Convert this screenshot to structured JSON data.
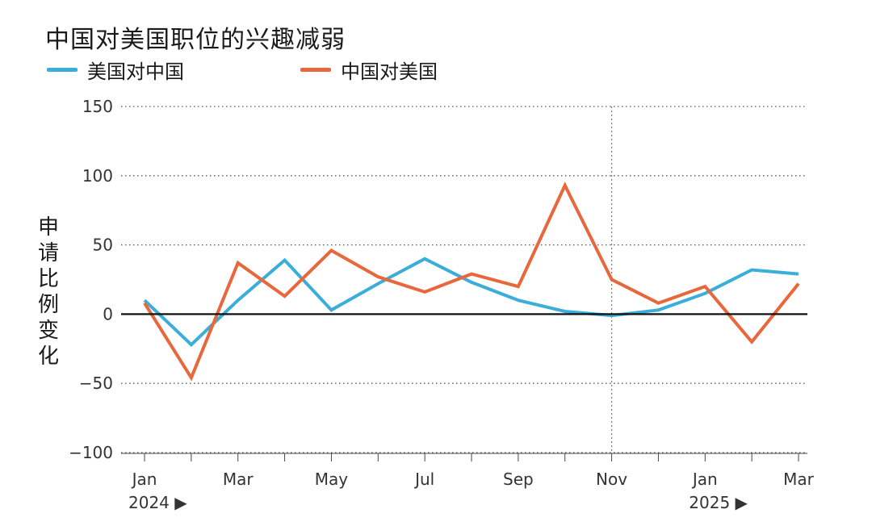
{
  "title": "中国对美国职位的兴趣减弱",
  "legend": [
    {
      "label": "美国对中国",
      "color": "#3aaed8"
    },
    {
      "label": "中国对美国",
      "color": "#e8673c"
    }
  ],
  "ylabel_chars": [
    "申",
    "请",
    "比",
    "例",
    "变",
    "化"
  ],
  "chart_data": {
    "type": "line",
    "title": "中国对美国职位的兴趣减弱",
    "ylabel": "申请比例变化",
    "xlabel": "",
    "x": [
      "2024-01",
      "2024-02",
      "2024-03",
      "2024-04",
      "2024-05",
      "2024-06",
      "2024-07",
      "2024-08",
      "2024-09",
      "2024-10",
      "2024-11",
      "2024-12",
      "2025-01",
      "2025-02",
      "2025-03"
    ],
    "x_tick_labels": [
      "Jan",
      "",
      "Mar",
      "",
      "May",
      "",
      "Jul",
      "",
      "Sep",
      "",
      "Nov",
      "",
      "Jan",
      "",
      "Mar"
    ],
    "year_labels": [
      {
        "at": "2024-01",
        "label": "2024 ▶"
      },
      {
        "at": "2025-01",
        "label": "2025 ▶"
      }
    ],
    "yticks": [
      150,
      100,
      50,
      0,
      -50,
      -100
    ],
    "ytick_labels": [
      "150",
      "100",
      "50",
      "0",
      "−50",
      "−100"
    ],
    "ylim": [
      -100,
      150
    ],
    "grid": "horizontal-dotted",
    "zero_line": true,
    "marker_line_at": "2024-11",
    "series": [
      {
        "name": "美国对中国",
        "color": "#3aaed8",
        "values": [
          10,
          -22,
          10,
          39,
          3,
          22,
          40,
          23,
          10,
          2,
          -1,
          3,
          15,
          32,
          29
        ]
      },
      {
        "name": "中国对美国",
        "color": "#e8673c",
        "values": [
          8,
          -46,
          37,
          13,
          46,
          27,
          16,
          29,
          20,
          93,
          25,
          8,
          20,
          -20,
          22
        ]
      }
    ]
  }
}
